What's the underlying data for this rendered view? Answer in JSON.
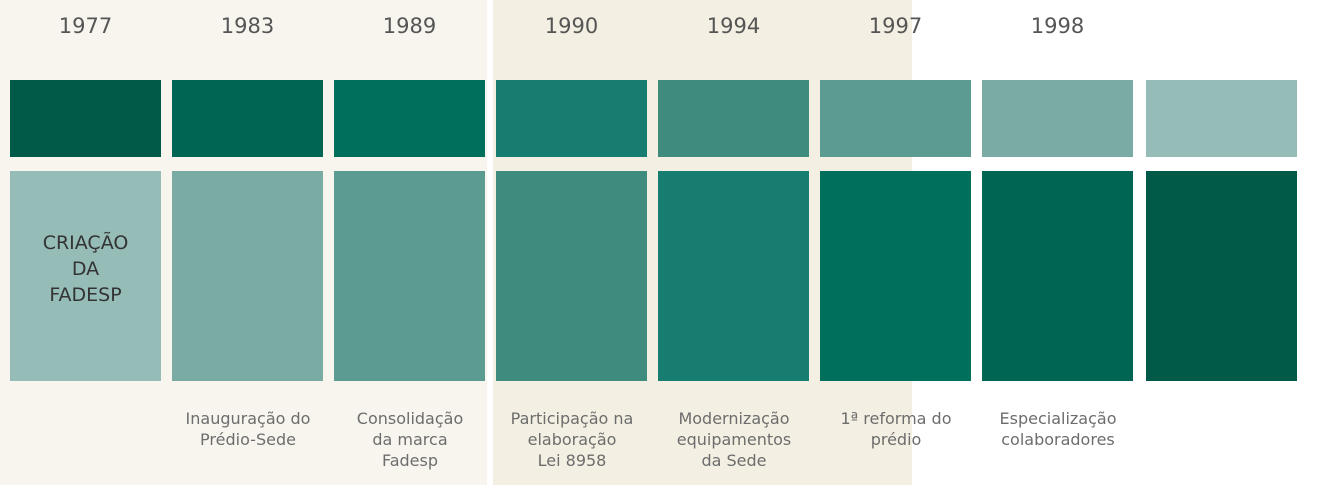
{
  "timeline": {
    "years": [
      "1977",
      "1983",
      "1989",
      "1990",
      "1994",
      "1997",
      "1998"
    ],
    "box_text": [
      "CRIAÇÃO",
      "DA",
      "FADESP"
    ],
    "captions": [
      [
        "Inauguração do",
        "Prédio-Sede"
      ],
      [
        "Consolidação",
        "da marca",
        "Fadesp"
      ],
      [
        "Participação na",
        "elaboração",
        "Lei 8958"
      ],
      [
        "Modernização",
        "equipamentos",
        "da Sede"
      ],
      [
        "1ª reforma do",
        "prédio"
      ],
      [
        "Especialização",
        "colaboradores"
      ]
    ]
  }
}
